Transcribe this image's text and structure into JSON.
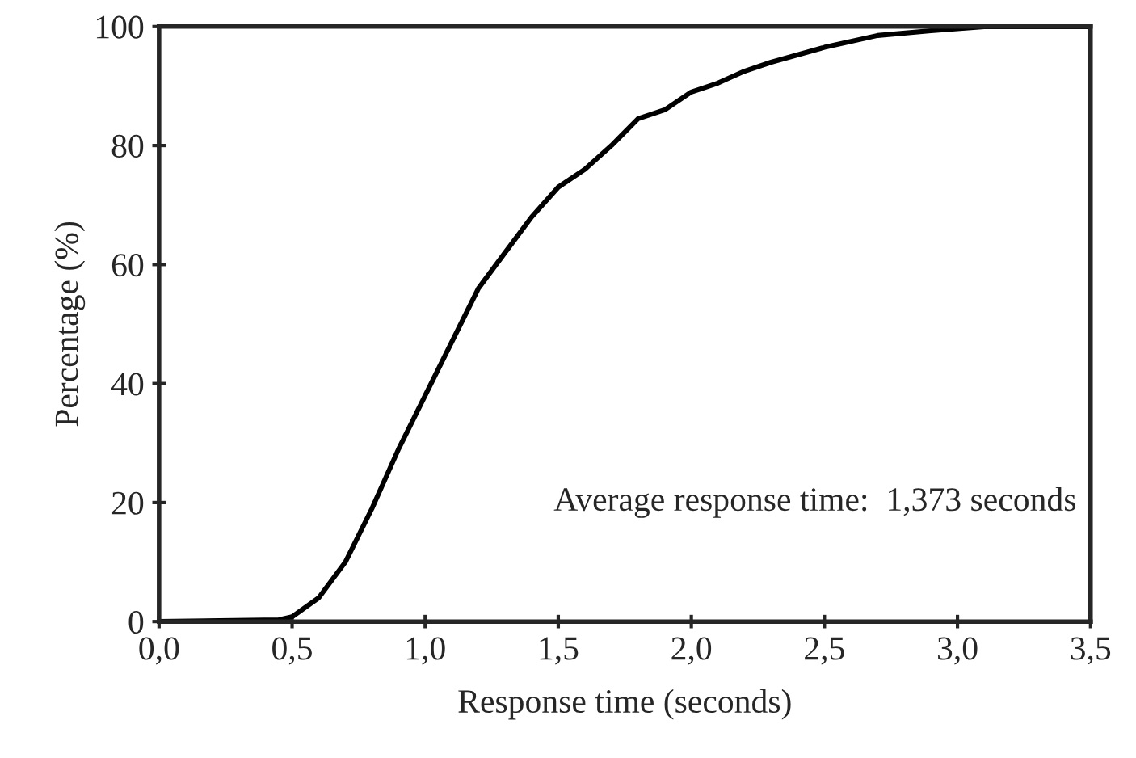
{
  "chart_data": {
    "type": "line",
    "xlabel": "Response time (seconds)",
    "ylabel": "Percentage (%)",
    "annotations": [
      "Average response time:  1,373 seconds"
    ],
    "series": [
      {
        "color": "#000000",
        "x": [
          0,
          0.45,
          0.5,
          0.6,
          0.7,
          0.8,
          0.9,
          1.0,
          1.1,
          1.2,
          1.3,
          1.4,
          1.5,
          1.6,
          1.7,
          1.8,
          1.9,
          2.0,
          2.1,
          2.2,
          2.3,
          2.5,
          2.7,
          2.9,
          3.1,
          3.5
        ],
        "values": [
          0,
          0.3,
          0.8,
          4,
          10,
          19,
          29,
          38,
          47,
          56,
          62,
          68,
          73,
          76,
          80,
          84.5,
          86,
          89,
          90.5,
          92.5,
          94,
          96.5,
          98.5,
          99.3,
          100,
          100
        ]
      }
    ],
    "xlim": [
      0,
      3.5
    ],
    "ylim": [
      0,
      100
    ],
    "xticks": [
      {
        "value": 0,
        "label": "0,0"
      },
      {
        "value": 0.5,
        "label": "0,5"
      },
      {
        "value": 1,
        "label": "1,0"
      },
      {
        "value": 1.5,
        "label": "1,5"
      },
      {
        "value": 2,
        "label": "2,0"
      },
      {
        "value": 2.5,
        "label": "2,5"
      },
      {
        "value": 3,
        "label": "3,0"
      },
      {
        "value": 3.5,
        "label": "3,5"
      }
    ],
    "yticks": [
      0,
      20,
      40,
      60,
      80,
      100
    ],
    "grid": false,
    "marker": "none",
    "line_style": "solid"
  }
}
